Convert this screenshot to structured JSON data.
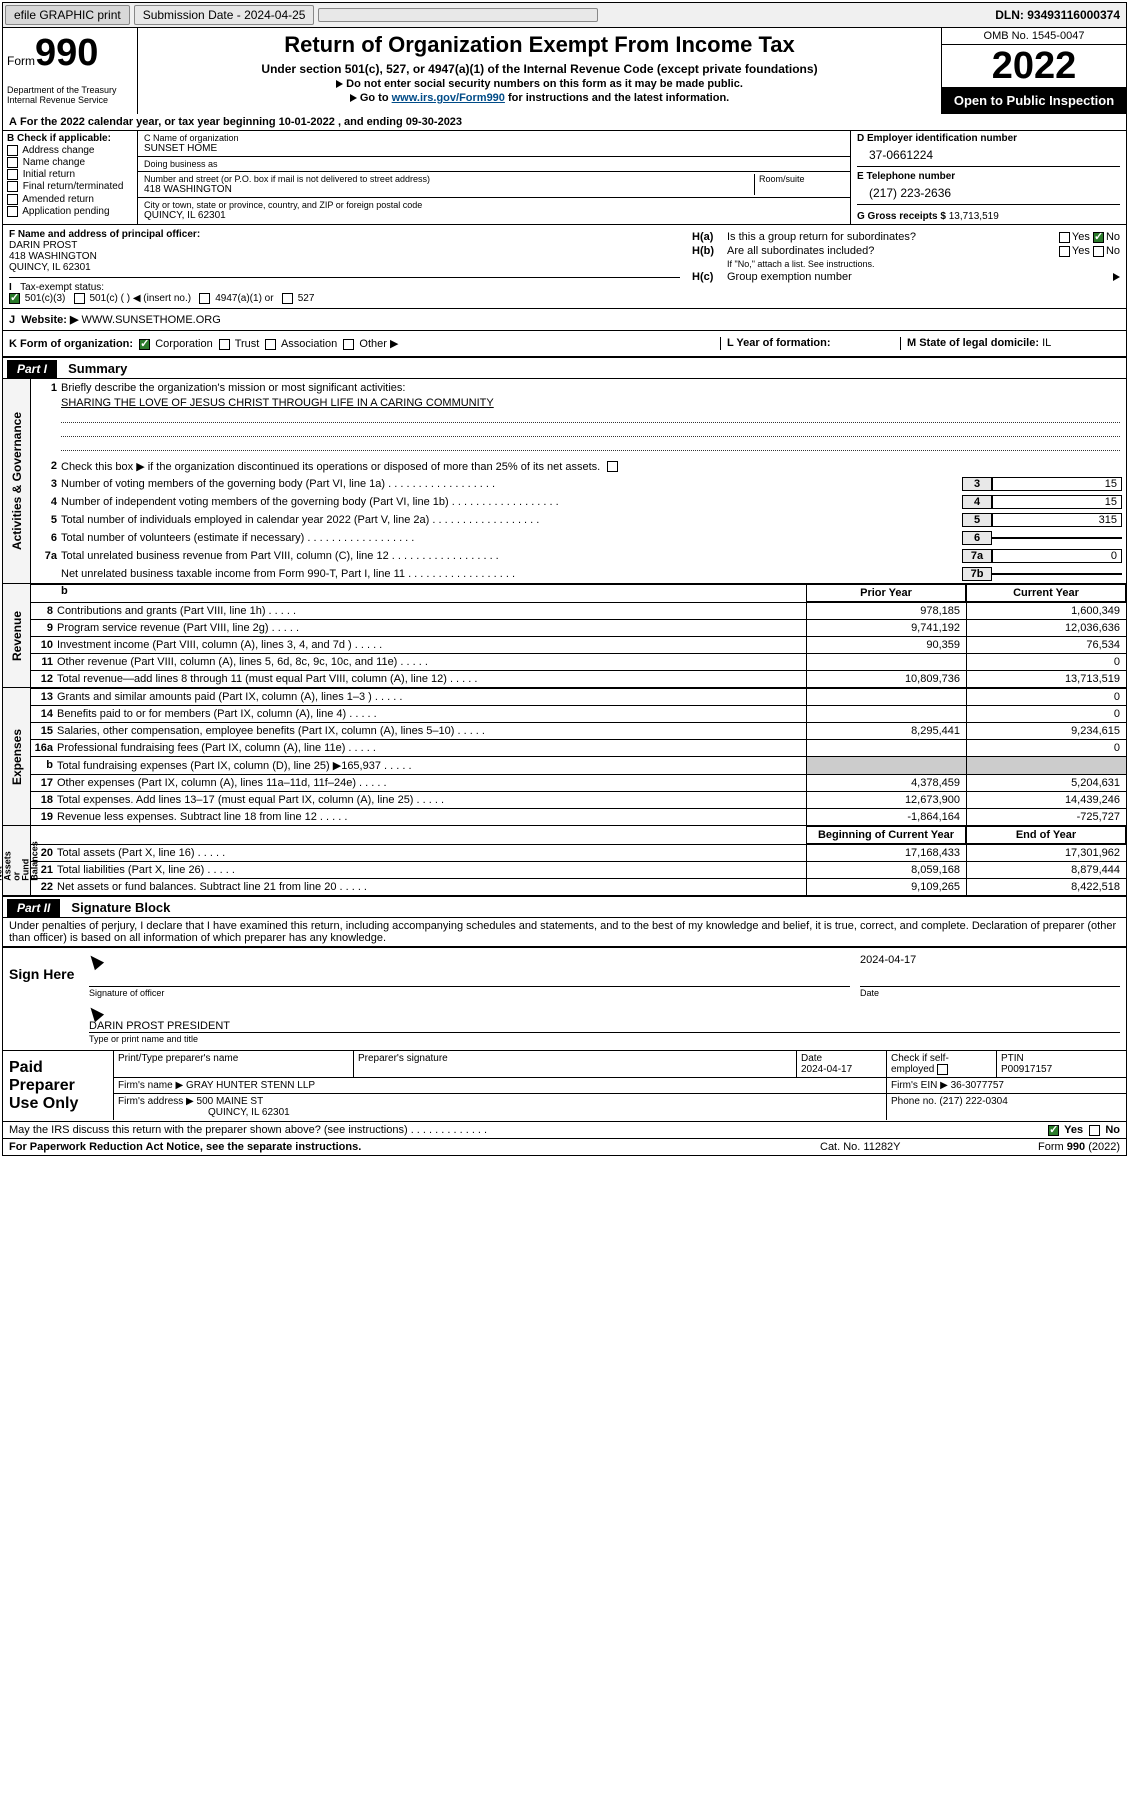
{
  "topbar": {
    "efile": "efile GRAPHIC print",
    "submission_label": "Submission Date - 2024-04-25",
    "dln": "DLN: 93493116000374"
  },
  "header": {
    "form_word": "Form",
    "form_num": "990",
    "title": "Return of Organization Exempt From Income Tax",
    "subtitle": "Under section 501(c), 527, or 4947(a)(1) of the Internal Revenue Code (except private foundations)",
    "directive1": "Do not enter social security numbers on this form as it may be made public.",
    "directive2_pre": "Go to ",
    "directive2_link": "www.irs.gov/Form990",
    "directive2_post": " for instructions and the latest information.",
    "dept": "Department of the Treasury\nInternal Revenue Service",
    "omb": "OMB No. 1545-0047",
    "year": "2022",
    "open_public": "Open to Public Inspection"
  },
  "section_a": {
    "prefix": "A",
    "text": "For the 2022 calendar year, or tax year beginning 10-01-2022    , and ending 09-30-2023"
  },
  "col_b": {
    "header": "B Check if applicable:",
    "items": [
      "Address change",
      "Name change",
      "Initial return",
      "Final return/terminated",
      "Amended return",
      "Application pending"
    ]
  },
  "col_c": {
    "name_lbl": "C Name of organization",
    "name_val": "SUNSET HOME",
    "dba_lbl": "Doing business as",
    "dba_val": "",
    "street_lbl": "Number and street (or P.O. box if mail is not delivered to street address)",
    "street_val": "418 WASHINGTON",
    "room_lbl": "Room/suite",
    "city_lbl": "City or town, state or province, country, and ZIP or foreign postal code",
    "city_val": "QUINCY, IL  62301"
  },
  "col_d": {
    "ein_lbl": "D Employer identification number",
    "ein_val": "37-0661224",
    "phone_lbl": "E Telephone number",
    "phone_val": "(217) 223-2636",
    "gross_lbl": "G Gross receipts $",
    "gross_val": "13,713,519"
  },
  "row_f": {
    "lbl": "F Name and address of principal officer:",
    "name": "DARIN PROST",
    "addr1": "418 WASHINGTON",
    "addr2": "QUINCY, IL  62301"
  },
  "row_h": {
    "ha_lbl": "H(a)",
    "ha_txt": "Is this a group return for subordinates?",
    "hb_lbl": "H(b)",
    "hb_txt": "Are all subordinates included?",
    "hb_note": "If \"No,\" attach a list. See instructions.",
    "hc_lbl": "H(c)",
    "hc_txt": "Group exemption number",
    "yes": "Yes",
    "no": "No"
  },
  "row_i": {
    "lbl": "I",
    "txt": "Tax-exempt status:",
    "opts": [
      "501(c)(3)",
      "501(c) (    ) ◀ (insert no.)",
      "4947(a)(1) or",
      "527"
    ]
  },
  "row_j": {
    "lbl": "J",
    "txt": "Website: ▶",
    "val": "WWW.SUNSETHOME.ORG"
  },
  "row_k": {
    "lbl": "K Form of organization:",
    "opts": [
      "Corporation",
      "Trust",
      "Association",
      "Other ▶"
    ],
    "mid_lbl": "L Year of formation:",
    "mid_val": "",
    "right_lbl": "M State of legal domicile:",
    "right_val": "IL"
  },
  "part1": {
    "part": "Part I",
    "title": "Summary",
    "q1": "Briefly describe the organization's mission or most significant activities:",
    "mission": "SHARING THE LOVE OF JESUS CHRIST THROUGH LIFE IN A CARING COMMUNITY",
    "q2": "Check this box ▶     if the organization discontinued its operations or disposed of more than 25% of its net assets.",
    "lines_gov": [
      {
        "n": "3",
        "t": "Number of voting members of the governing body (Part VI, line 1a)",
        "c": "3",
        "v": "15"
      },
      {
        "n": "4",
        "t": "Number of independent voting members of the governing body (Part VI, line 1b)",
        "c": "4",
        "v": "15"
      },
      {
        "n": "5",
        "t": "Total number of individuals employed in calendar year 2022 (Part V, line 2a)",
        "c": "5",
        "v": "315"
      },
      {
        "n": "6",
        "t": "Total number of volunteers (estimate if necessary)",
        "c": "6",
        "v": ""
      },
      {
        "n": "7a",
        "t": "Total unrelated business revenue from Part VIII, column (C), line 12",
        "c": "7a",
        "v": "0"
      },
      {
        "n": "",
        "t": "Net unrelated business taxable income from Form 990-T, Part I, line 11",
        "c": "7b",
        "v": ""
      }
    ],
    "col_hdr_prior": "Prior Year",
    "col_hdr_curr": "Current Year",
    "vlabel_gov": "Activities & Governance",
    "vlabel_rev": "Revenue",
    "vlabel_exp": "Expenses",
    "vlabel_net": "Net Assets or\nFund Balances",
    "lines_rev": [
      {
        "n": "8",
        "t": "Contributions and grants (Part VIII, line 1h)",
        "p": "978,185",
        "c": "1,600,349"
      },
      {
        "n": "9",
        "t": "Program service revenue (Part VIII, line 2g)",
        "p": "9,741,192",
        "c": "12,036,636"
      },
      {
        "n": "10",
        "t": "Investment income (Part VIII, column (A), lines 3, 4, and 7d )",
        "p": "90,359",
        "c": "76,534"
      },
      {
        "n": "11",
        "t": "Other revenue (Part VIII, column (A), lines 5, 6d, 8c, 9c, 10c, and 11e)",
        "p": "",
        "c": "0"
      },
      {
        "n": "12",
        "t": "Total revenue—add lines 8 through 11 (must equal Part VIII, column (A), line 12)",
        "p": "10,809,736",
        "c": "13,713,519"
      }
    ],
    "lines_exp": [
      {
        "n": "13",
        "t": "Grants and similar amounts paid (Part IX, column (A), lines 1–3 )",
        "p": "",
        "c": "0"
      },
      {
        "n": "14",
        "t": "Benefits paid to or for members (Part IX, column (A), line 4)",
        "p": "",
        "c": "0"
      },
      {
        "n": "15",
        "t": "Salaries, other compensation, employee benefits (Part IX, column (A), lines 5–10)",
        "p": "8,295,441",
        "c": "9,234,615"
      },
      {
        "n": "16a",
        "t": "Professional fundraising fees (Part IX, column (A), line 11e)",
        "p": "",
        "c": "0"
      },
      {
        "n": "b",
        "t": "Total fundraising expenses (Part IX, column (D), line 25) ▶165,937",
        "p": "shade",
        "c": "shade"
      },
      {
        "n": "17",
        "t": "Other expenses (Part IX, column (A), lines 11a–11d, 11f–24e)",
        "p": "4,378,459",
        "c": "5,204,631"
      },
      {
        "n": "18",
        "t": "Total expenses. Add lines 13–17 (must equal Part IX, column (A), line 25)",
        "p": "12,673,900",
        "c": "14,439,246"
      },
      {
        "n": "19",
        "t": "Revenue less expenses. Subtract line 18 from line 12",
        "p": "-1,864,164",
        "c": "-725,727"
      }
    ],
    "col_hdr_beg": "Beginning of Current Year",
    "col_hdr_end": "End of Year",
    "lines_net": [
      {
        "n": "20",
        "t": "Total assets (Part X, line 16)",
        "p": "17,168,433",
        "c": "17,301,962"
      },
      {
        "n": "21",
        "t": "Total liabilities (Part X, line 26)",
        "p": "8,059,168",
        "c": "8,879,444"
      },
      {
        "n": "22",
        "t": "Net assets or fund balances. Subtract line 21 from line 20",
        "p": "9,109,265",
        "c": "8,422,518"
      }
    ]
  },
  "part2": {
    "part": "Part II",
    "title": "Signature Block",
    "decl": "Under penalties of perjury, I declare that I have examined this return, including accompanying schedules and statements, and to the best of my knowledge and belief, it is true, correct, and complete. Declaration of preparer (other than officer) is based on all information of which preparer has any knowledge."
  },
  "sign": {
    "left": "Sign Here",
    "date": "2024-04-17",
    "sig_lbl": "Signature of officer",
    "date_lbl": "Date",
    "name": "DARIN PROST PRESIDENT",
    "name_lbl": "Type or print name and title"
  },
  "preparer": {
    "left": "Paid Preparer Use Only",
    "hdr": [
      "Print/Type preparer's name",
      "Preparer's signature",
      "Date",
      "Check     if self-employed",
      "PTIN"
    ],
    "row1": [
      "",
      "",
      "2024-04-17",
      "",
      "P00917157"
    ],
    "firm_name_lbl": "Firm's name    ▶",
    "firm_name": "GRAY HUNTER STENN LLP",
    "firm_ein_lbl": "Firm's EIN ▶",
    "firm_ein": "36-3077757",
    "firm_addr_lbl": "Firm's address ▶",
    "firm_addr1": "500 MAINE ST",
    "firm_addr2": "QUINCY, IL  62301",
    "phone_lbl": "Phone no.",
    "phone": "(217) 222-0304",
    "discuss": "May the IRS discuss this return with the preparer shown above? (see instructions)",
    "yes": "Yes",
    "no": "No"
  },
  "footer": {
    "left": "For Paperwork Reduction Act Notice, see the separate instructions.",
    "mid": "Cat. No. 11282Y",
    "right": "Form 990 (2022)"
  }
}
